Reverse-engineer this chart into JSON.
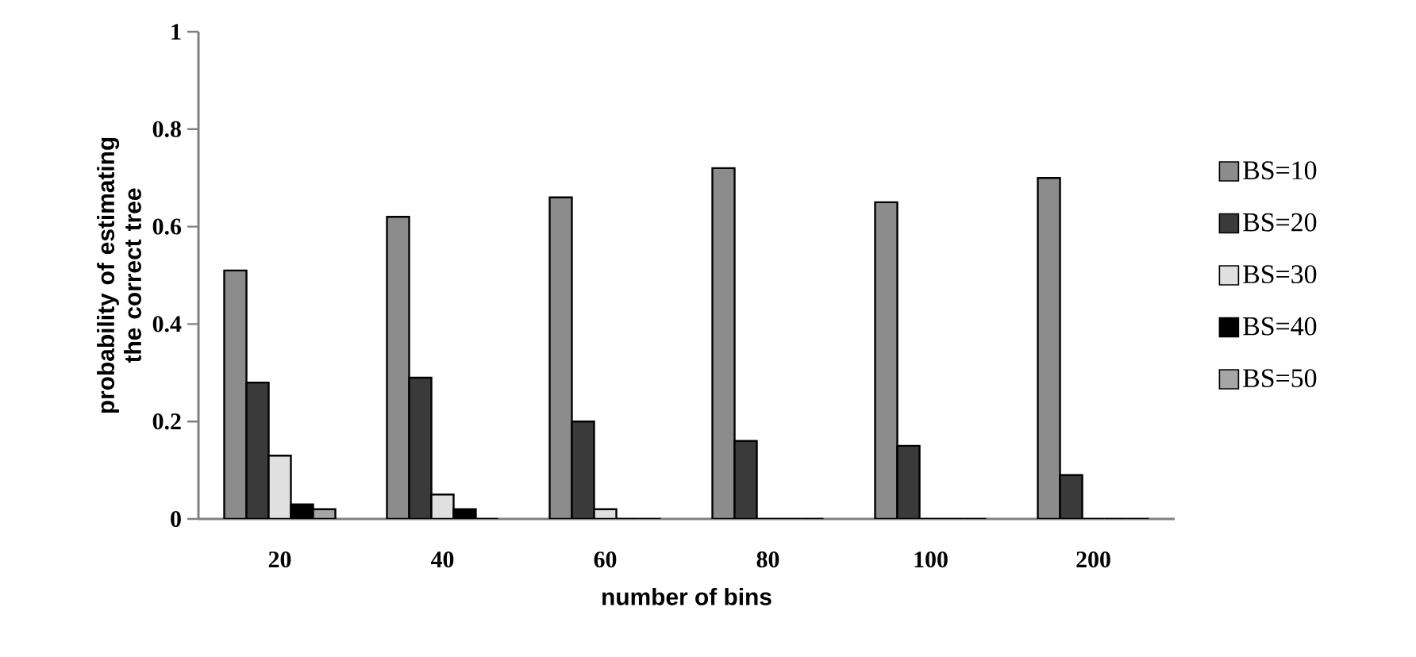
{
  "chart_data": {
    "type": "bar",
    "xlabel": "number of bins",
    "ylabel": "probability of estimating the correct tree",
    "categories": [
      "20",
      "40",
      "60",
      "80",
      "100",
      "200"
    ],
    "series": [
      {
        "name": "BS=10",
        "color": "#8c8c8c",
        "values": [
          0.51,
          0.62,
          0.66,
          0.72,
          0.65,
          0.7
        ]
      },
      {
        "name": "BS=20",
        "color": "#3a3a3a",
        "values": [
          0.28,
          0.29,
          0.2,
          0.16,
          0.15,
          0.09
        ]
      },
      {
        "name": "BS=30",
        "color": "#e0e0e0",
        "values": [
          0.13,
          0.05,
          0.02,
          0,
          0,
          0
        ]
      },
      {
        "name": "BS=40",
        "color": "#000000",
        "values": [
          0.03,
          0.02,
          0,
          0,
          0,
          0
        ]
      },
      {
        "name": "BS=50",
        "color": "#a6a6a6",
        "values": [
          0.02,
          0,
          0,
          0,
          0,
          0
        ]
      }
    ],
    "ylim": [
      0,
      1
    ],
    "yticks": [
      0,
      0.2,
      0.4,
      0.6,
      0.8,
      1
    ],
    "legend": "right",
    "grid": false
  }
}
